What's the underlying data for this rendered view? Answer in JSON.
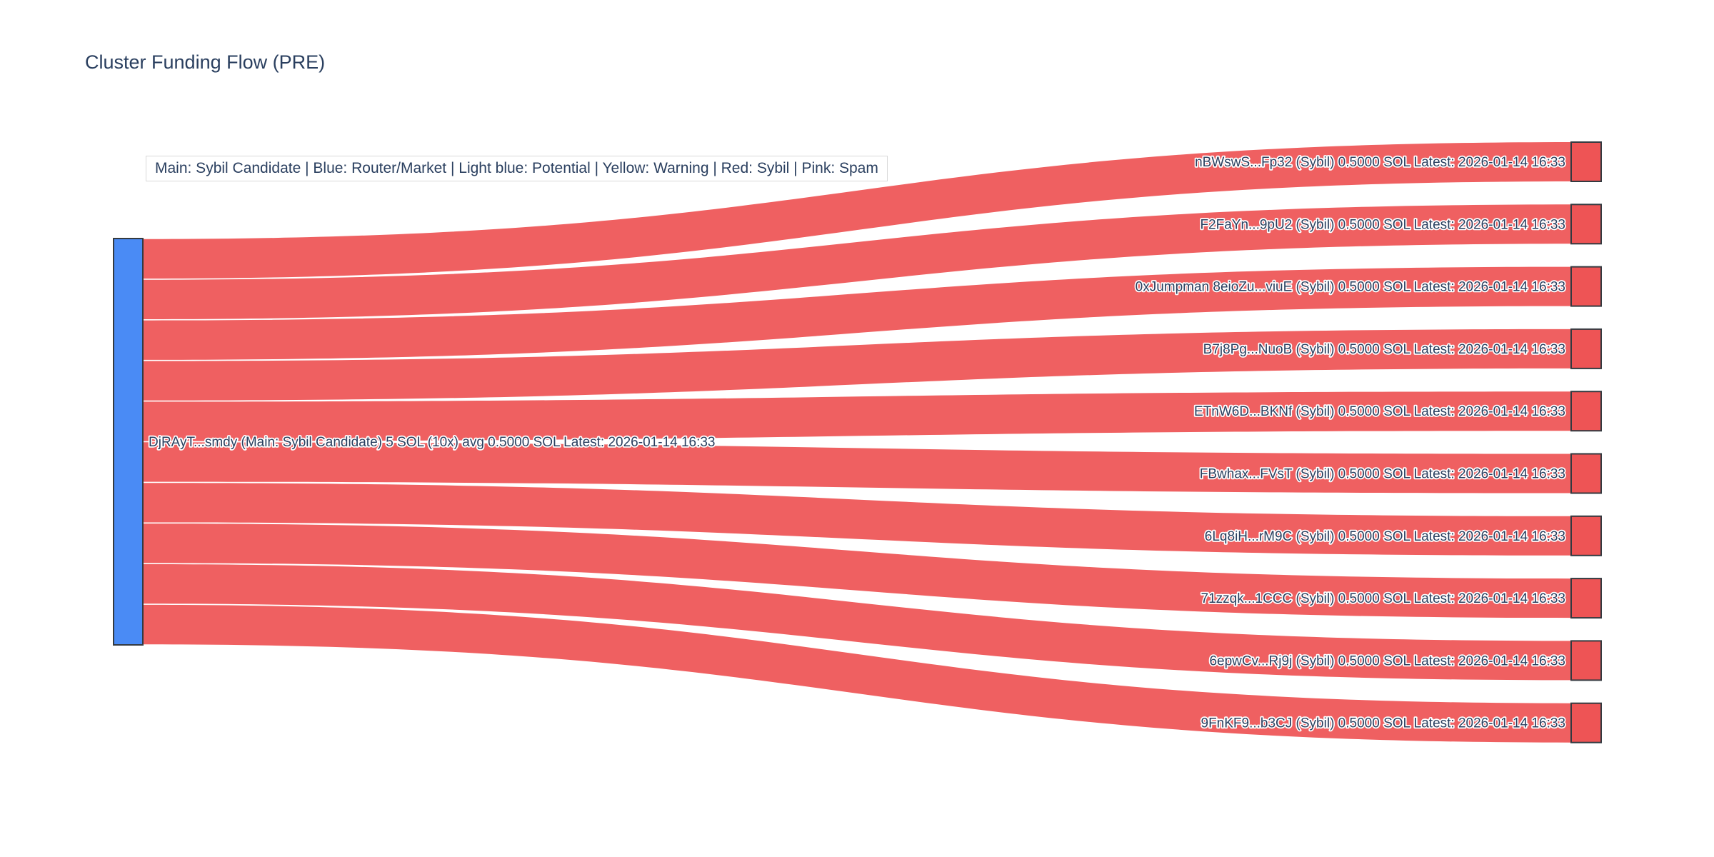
{
  "title": "Cluster Funding Flow (PRE)",
  "legend_note": "Main: Sybil Candidate  |  Blue: Router/Market | Light blue: Potential | Yellow: Warning | Red: Sybil | Pink: Spam",
  "colors": {
    "background": "#ffffff",
    "title_text": "#2a3f5f",
    "label_text": "#2a3f5f",
    "link": "#ee5455",
    "sybil_node": "#ee5455",
    "main_node": "#4a8bf5",
    "node_border": "#343a40",
    "legend_border": "#d9d9d9",
    "legend_bg": "#ffffff"
  },
  "chart_data": {
    "type": "sankey",
    "title": "Cluster Funding Flow (PRE)",
    "orientation": "horizontal",
    "source": {
      "label": "DjRAyT...smdy (Main: Sybil Candidate) 5 SOL (10x) avg 0.5000 SOL Latest: 2026-01-14 16:33",
      "wallet": "DjRAyT...smdy",
      "role": "Main: Sybil Candidate",
      "total_sol": 5,
      "transfer_count_label": "10x",
      "avg_sol_label": "0.5000 SOL",
      "latest": "2026-01-14 16:33",
      "color": "#4a8bf5"
    },
    "link_note": "one link of value_sol flows from source to each target",
    "targets": [
      {
        "label": "nBWswS...Fp32 (Sybil) 0.5000 SOL Latest: 2026-01-14 16:33",
        "wallet": "nBWswS...Fp32",
        "role": "Sybil",
        "value_sol": 0.5,
        "latest": "2026-01-14 16:33"
      },
      {
        "label": "F2FaYn...9pU2 (Sybil) 0.5000 SOL Latest: 2026-01-14 16:33",
        "wallet": "F2FaYn...9pU2",
        "role": "Sybil",
        "value_sol": 0.5,
        "latest": "2026-01-14 16:33"
      },
      {
        "label": "0xJumpman 8eioZu...viuE (Sybil) 0.5000 SOL Latest: 2026-01-14 16:33",
        "wallet": "0xJumpman 8eioZu...viuE",
        "role": "Sybil",
        "value_sol": 0.5,
        "latest": "2026-01-14 16:33"
      },
      {
        "label": "B7j8Pg...NuoB (Sybil) 0.5000 SOL Latest: 2026-01-14 16:33",
        "wallet": "B7j8Pg...NuoB",
        "role": "Sybil",
        "value_sol": 0.5,
        "latest": "2026-01-14 16:33"
      },
      {
        "label": "ETnW6D...BKNf (Sybil) 0.5000 SOL Latest: 2026-01-14 16:33",
        "wallet": "ETnW6D...BKNf",
        "role": "Sybil",
        "value_sol": 0.5,
        "latest": "2026-01-14 16:33"
      },
      {
        "label": "FBwhax...FVsT (Sybil) 0.5000 SOL Latest: 2026-01-14 16:33",
        "wallet": "FBwhax...FVsT",
        "role": "Sybil",
        "value_sol": 0.5,
        "latest": "2026-01-14 16:33"
      },
      {
        "label": "6Lq8iH...rM9C (Sybil) 0.5000 SOL Latest: 2026-01-14 16:33",
        "wallet": "6Lq8iH...rM9C",
        "role": "Sybil",
        "value_sol": 0.5,
        "latest": "2026-01-14 16:33"
      },
      {
        "label": "71zzqk...1CCC (Sybil) 0.5000 SOL Latest: 2026-01-14 16:33",
        "wallet": "71zzqk...1CCC",
        "role": "Sybil",
        "value_sol": 0.5,
        "latest": "2026-01-14 16:33"
      },
      {
        "label": "6epwCv...Rj9j (Sybil) 0.5000 SOL Latest: 2026-01-14 16:33",
        "wallet": "6epwCv...Rj9j",
        "role": "Sybil",
        "value_sol": 0.5,
        "latest": "2026-01-14 16:33"
      },
      {
        "label": "9FnKF9...b3CJ (Sybil) 0.5000 SOL Latest: 2026-01-14 16:33",
        "wallet": "9FnKF9...b3CJ",
        "role": "Sybil",
        "value_sol": 0.5,
        "latest": "2026-01-14 16:33"
      }
    ]
  }
}
